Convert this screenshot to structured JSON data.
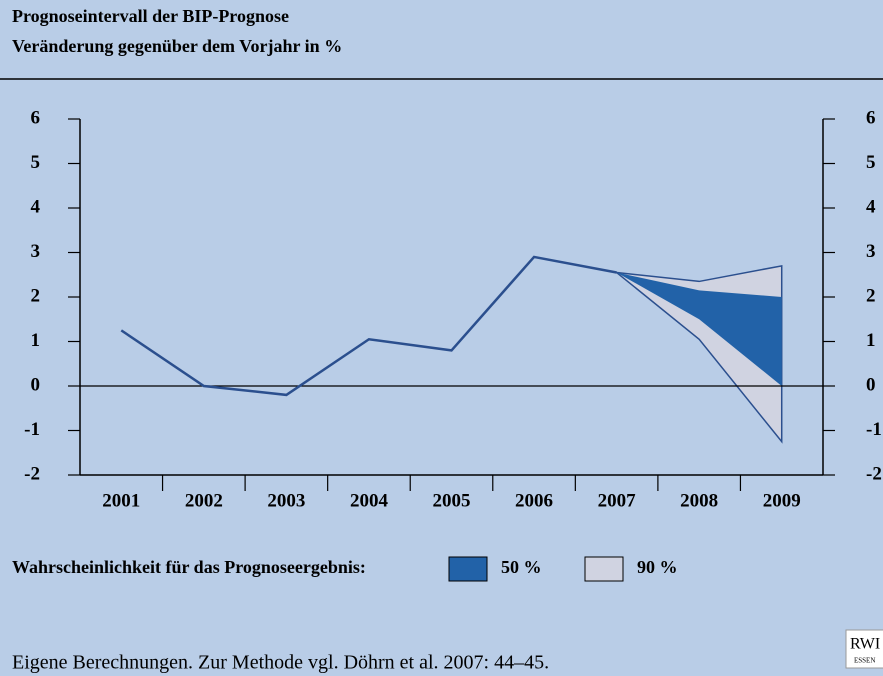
{
  "chart_data": {
    "type": "fan",
    "title": "Prognoseintervall der BIP-Prognose",
    "subtitle": "Veränderung gegenüber dem Vorjahr in %",
    "categories": [
      "2001",
      "2002",
      "2003",
      "2004",
      "2005",
      "2006",
      "2007",
      "2008",
      "2009"
    ],
    "line": {
      "color": "#2b4f8e",
      "values": [
        1.25,
        0.0,
        -0.2,
        1.05,
        0.8,
        2.9,
        2.55,
        null,
        null
      ]
    },
    "series": [
      {
        "name": "90 %",
        "color": "#d0d3e1",
        "lower": [
          null,
          null,
          null,
          null,
          null,
          null,
          2.55,
          1.05,
          -1.25
        ],
        "upper": [
          null,
          null,
          null,
          null,
          null,
          null,
          2.55,
          2.35,
          2.7
        ]
      },
      {
        "name": "50 %",
        "color": "#2262a8",
        "lower": [
          null,
          null,
          null,
          null,
          null,
          null,
          2.55,
          1.5,
          0.0
        ],
        "upper": [
          null,
          null,
          null,
          null,
          null,
          null,
          2.55,
          2.15,
          2.0
        ]
      }
    ],
    "ylim": [
      -2,
      6
    ],
    "yticks": [
      -2,
      -1,
      0,
      1,
      2,
      3,
      4,
      5,
      6
    ],
    "legend_title": "Wahrscheinlichkeit für das Prognoseergebnis:",
    "legend_order": [
      1,
      0
    ]
  },
  "footer": {
    "source": "Eigene Berechnungen. Zur Methode vgl. Döhrn et al. 2007: 44–45.",
    "logo": "RWI",
    "logo_sub": "ESSEN"
  }
}
